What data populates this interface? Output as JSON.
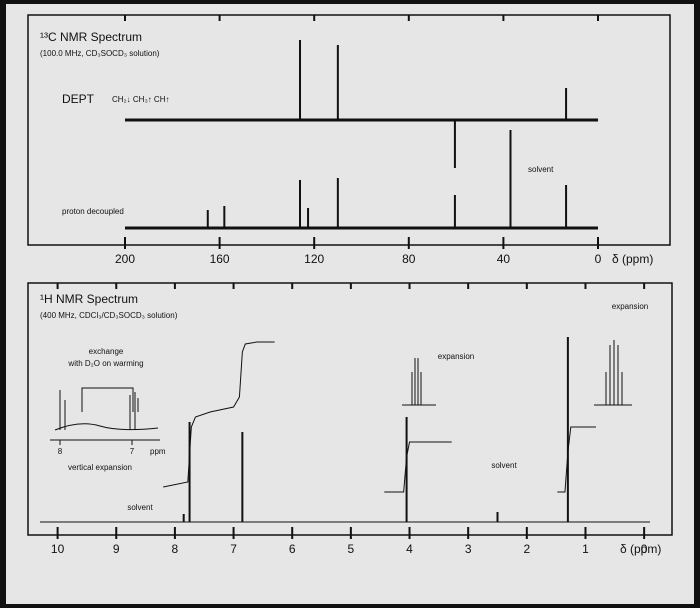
{
  "chart_data": [
    {
      "type": "stem",
      "title": "¹³C NMR Spectrum",
      "subtitle": "(100.0 MHz, CD₃SOCD₃ solution)",
      "x_label": "δ (ppm)",
      "xlim": [
        200,
        0
      ],
      "xticks": [
        200,
        160,
        120,
        80,
        40,
        0
      ],
      "series": [
        {
          "name": "DEPT",
          "annotation": "CH₂↓  CH₃↑  CH↑",
          "x": [
            126,
            110,
            60.5,
            13.5
          ],
          "values": [
            80,
            75,
            -48,
            32
          ]
        },
        {
          "name": "proton decoupled",
          "x": [
            165,
            158,
            126,
            122.6,
            110,
            60.5,
            37,
            13.5
          ],
          "values": [
            18,
            22,
            48,
            20,
            50,
            33,
            98,
            43
          ]
        }
      ],
      "annotations": [
        "solvent"
      ]
    },
    {
      "type": "stem",
      "title": "¹H NMR Spectrum",
      "subtitle": "(400 MHz, CDCl₃/CD₃SOCD₃ solution)",
      "x_label": "δ (ppm)",
      "xlim": [
        10.3,
        -0.1
      ],
      "xticks": [
        10,
        9,
        8,
        7,
        6,
        5,
        4,
        3,
        2,
        1,
        0
      ],
      "series": [
        {
          "name": "spectrum",
          "x": [
            7.85,
            7.75,
            6.85,
            4.05,
            2.5,
            1.3
          ],
          "values": [
            8,
            100,
            90,
            105,
            10,
            185
          ]
        }
      ],
      "integral": {
        "x": [
          8.2,
          7.78,
          7.72,
          7.65,
          7.4,
          7.0,
          6.9,
          6.85,
          6.8,
          6.6,
          6.3,
          null,
          4.43,
          4.1,
          4.05,
          4.0,
          3.28,
          null,
          1.48,
          1.35,
          1.3,
          1.25,
          0.82
        ],
        "values": [
          35,
          40,
          95,
          105,
          110,
          115,
          125,
          170,
          178,
          180,
          180,
          null,
          30,
          30,
          65,
          80,
          80,
          null,
          30,
          30,
          70,
          95,
          95
        ]
      },
      "inset": {
        "xticks": [
          8,
          7
        ],
        "x_label": "ppm"
      },
      "annotations": [
        "exchange",
        "with D₂O on warming",
        "vertical expansion",
        "solvent",
        "solvent",
        "expansion",
        "expansion"
      ]
    }
  ]
}
